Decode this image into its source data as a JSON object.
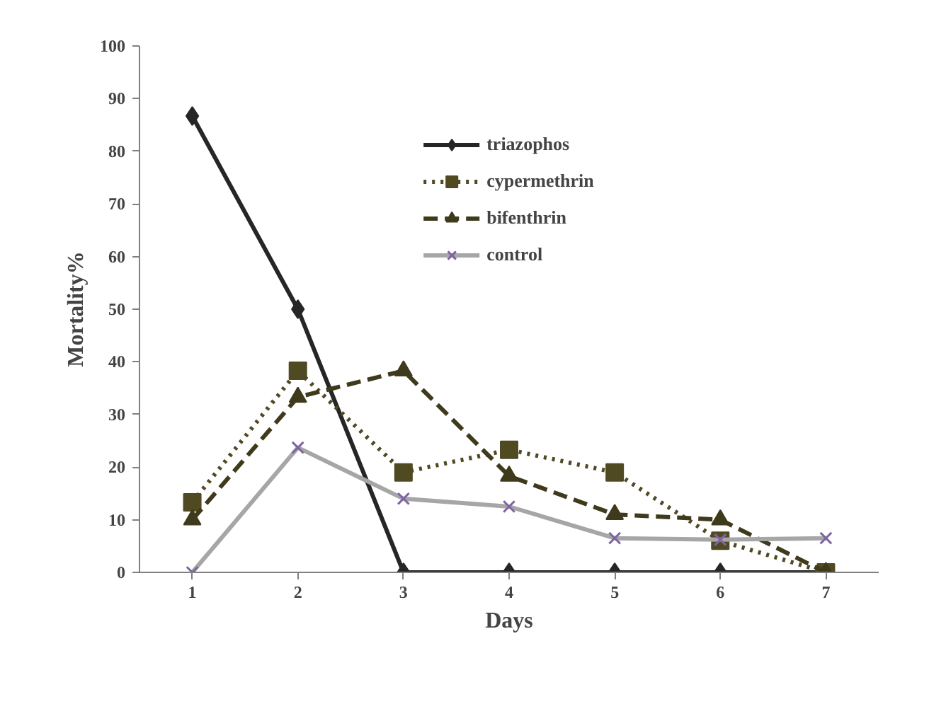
{
  "chart_data": {
    "type": "line",
    "xlabel": "Days",
    "ylabel": "Mortality%",
    "categories": [
      "1",
      "2",
      "3",
      "4",
      "5",
      "6",
      "7"
    ],
    "series": [
      {
        "name": "triazophos",
        "color": "#262626",
        "marker": "diamond",
        "line_style": "solid",
        "values": [
          86.7,
          50,
          0,
          0,
          0,
          0,
          0
        ]
      },
      {
        "name": "cypermethrin",
        "color": "#4f4a22",
        "marker": "square",
        "line_style": "dotted",
        "values": [
          13.3,
          38.3,
          19,
          23.3,
          19,
          6,
          0
        ]
      },
      {
        "name": "bifenthrin",
        "color": "#3f3a1c",
        "marker": "triangle",
        "line_style": "dashed",
        "values": [
          10,
          33.3,
          38.3,
          18.3,
          11,
          10,
          0
        ]
      },
      {
        "name": "control",
        "color": "#a6a6a6",
        "marker": "cross",
        "line_style": "solid",
        "values": [
          0,
          23.7,
          14,
          12.5,
          6.5,
          6.2,
          6.5
        ]
      }
    ],
    "ylim": [
      0,
      100
    ],
    "yticks": [
      0,
      10,
      20,
      30,
      40,
      50,
      60,
      70,
      80,
      90,
      100
    ],
    "grid": false,
    "legend": "top"
  }
}
